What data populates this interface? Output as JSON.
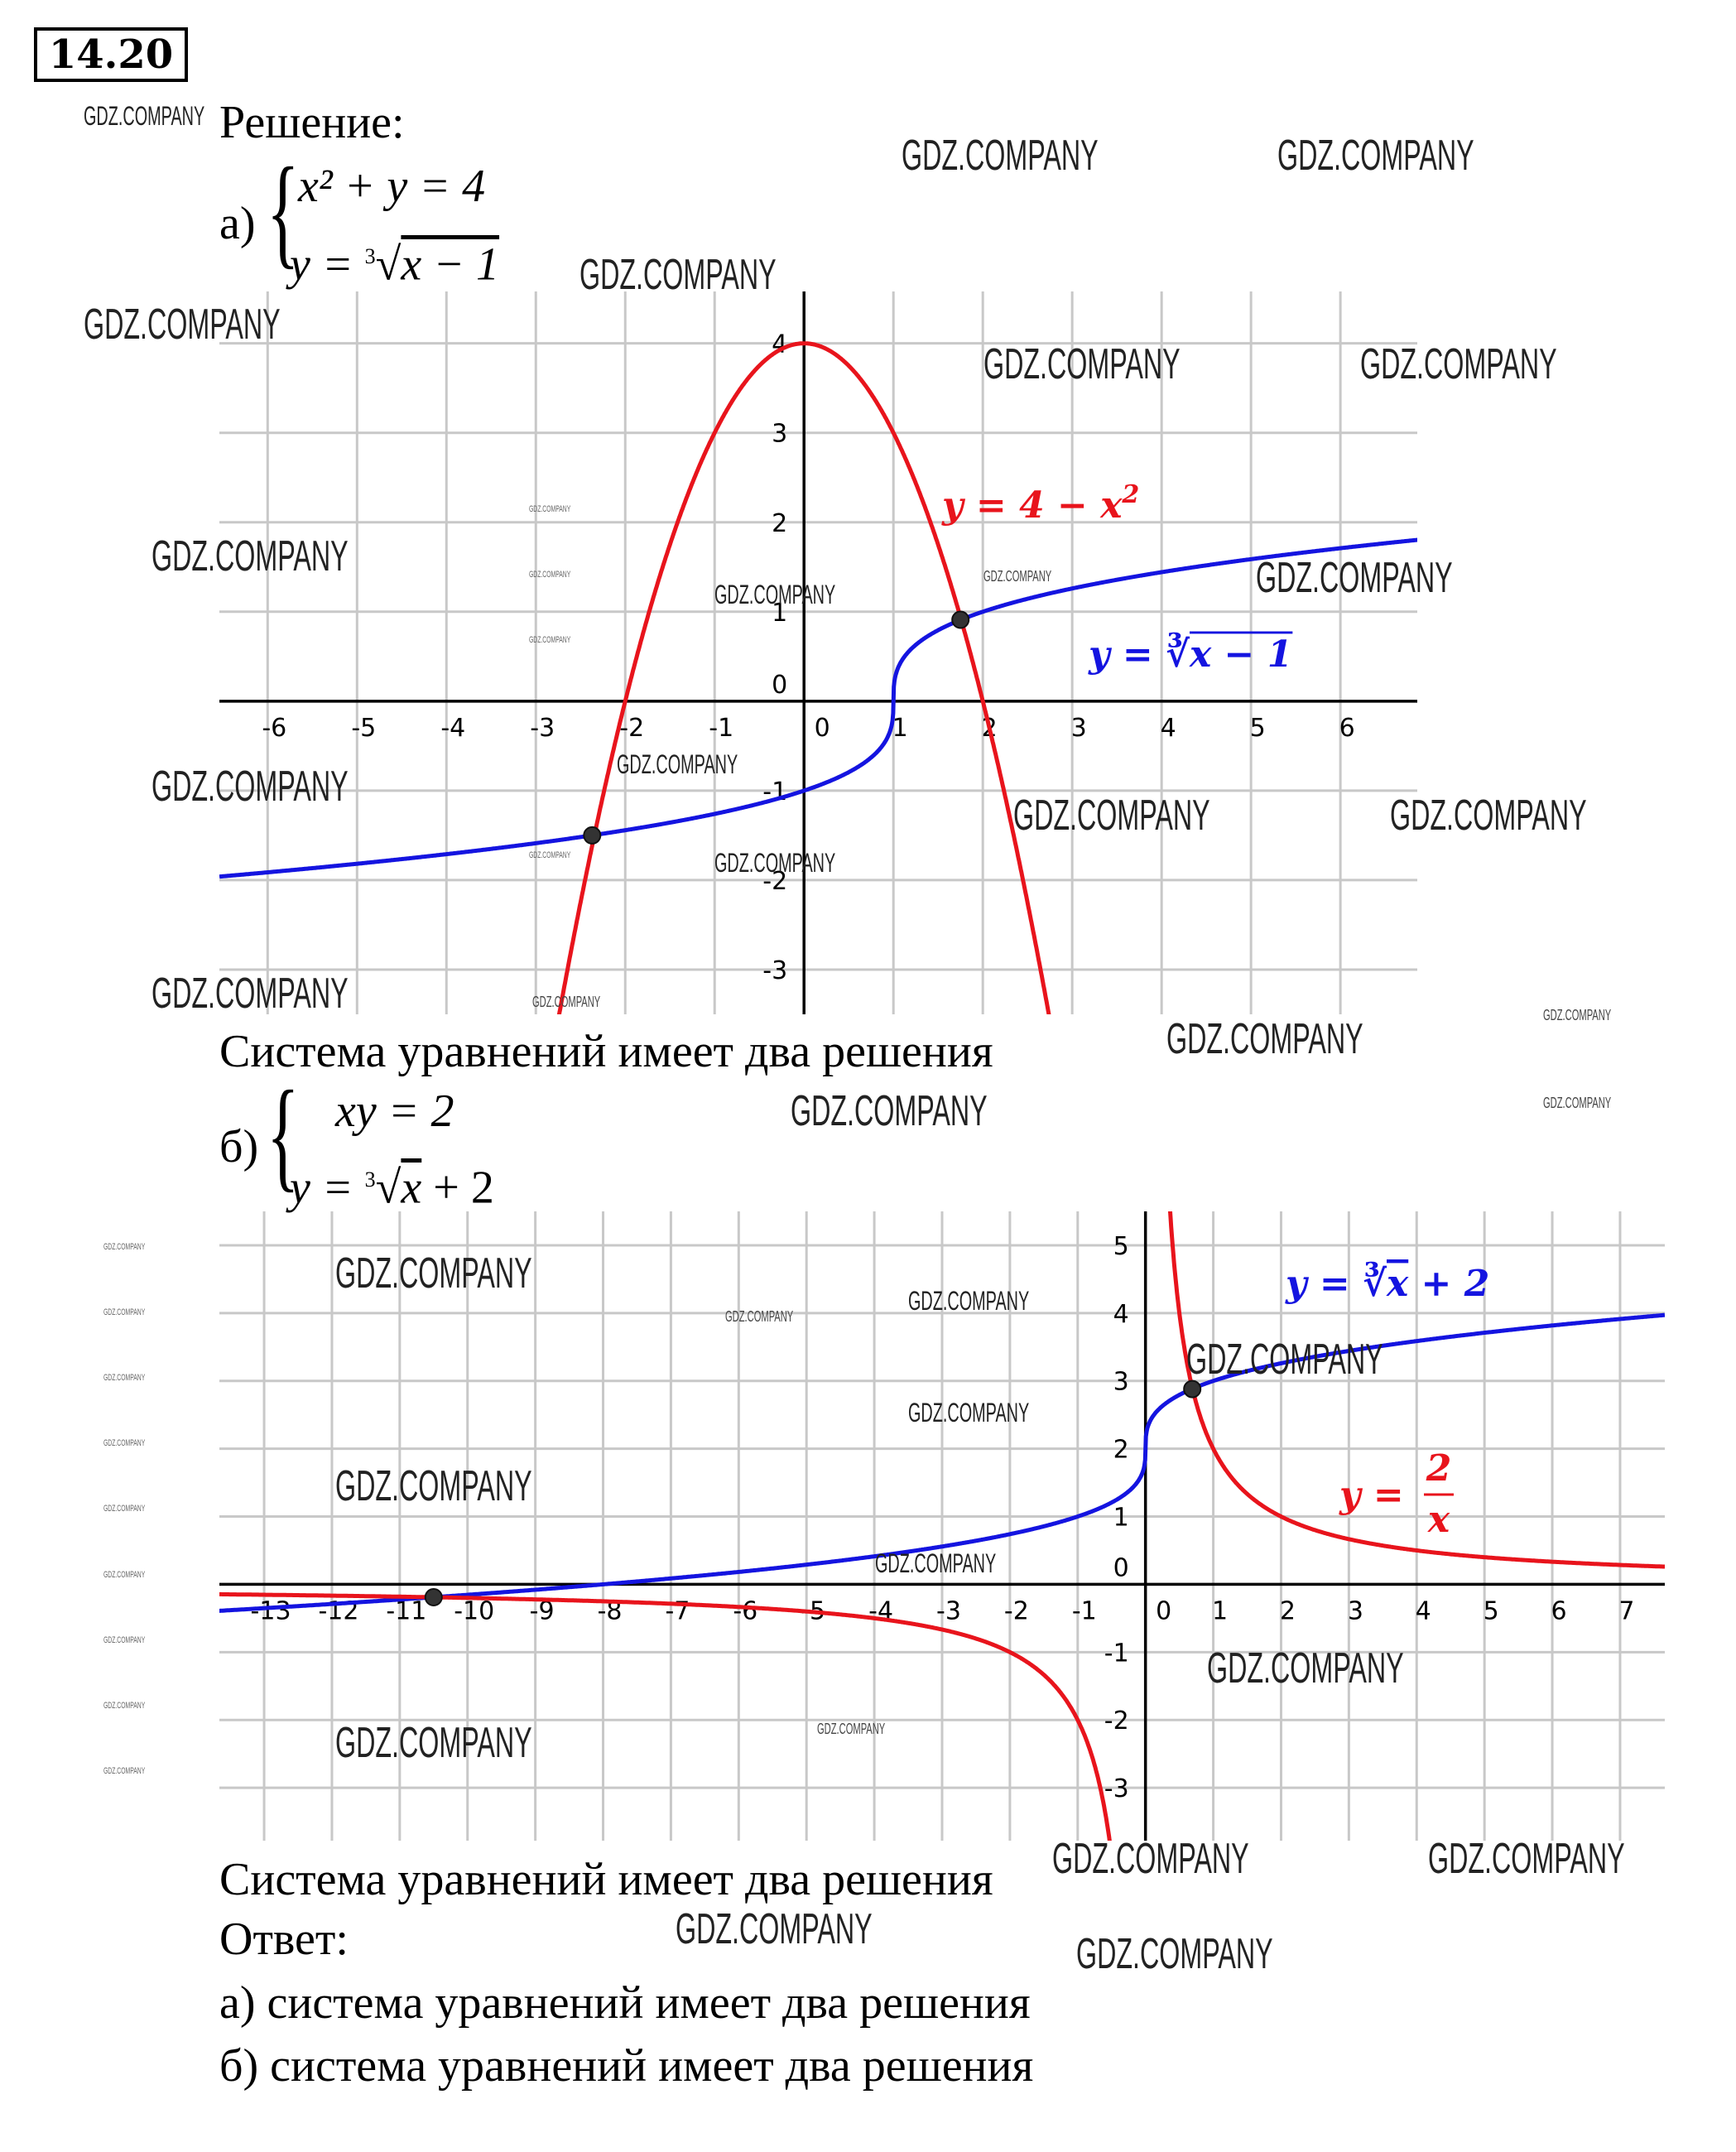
{
  "problem_number": "14.20",
  "solution_label": "Решение:",
  "part_a": {
    "label": "а)",
    "eq1": "x² + y = 4",
    "eq2_prefix": "y = ",
    "eq2_root_index": "3",
    "eq2_radicand": "x − 1",
    "conclusion": "Система уравнений имеет два решения"
  },
  "part_b": {
    "label": "б)",
    "eq1": "xy = 2",
    "eq2_prefix": "y = ",
    "eq2_root_index": "3",
    "eq2_radicand": "x",
    "eq2_suffix": " + 2",
    "conclusion": "Система уравнений имеет два решения"
  },
  "answer": {
    "title": "Ответ:",
    "a": "а) система уравнений имеет два решения",
    "b": "б) система уравнений имеет два решения"
  },
  "watermark": "GDZ.COMPANY",
  "colors": {
    "red": "#e8141c",
    "blue": "#1414e0",
    "grid": "#c8c8c8",
    "axis": "#000000",
    "point": "#333333"
  },
  "chart_data": [
    {
      "type": "line",
      "title": "",
      "xlim": [
        -6.54,
        6.86
      ],
      "ylim": [
        -3.5,
        4.58
      ],
      "grid": true,
      "x_ticks": [
        -6,
        -5,
        -4,
        -3,
        -2,
        -1,
        0,
        1,
        2,
        3,
        4,
        5,
        6
      ],
      "y_ticks": [
        -3,
        -2,
        -1,
        0,
        1,
        2,
        3,
        4
      ],
      "series": [
        {
          "name": "y = 4 − x²",
          "expr": "4-x^2",
          "color": "red",
          "label_parts": [
            "y = 4 − x",
            "2"
          ]
        },
        {
          "name": "y = ∛(x − 1)",
          "expr": "cbrt(x-1)",
          "color": "blue",
          "label_parts": [
            "y = ∛",
            "x − 1"
          ]
        }
      ],
      "points": [
        {
          "x": 1.75,
          "y": 0.91
        },
        {
          "x": -2.37,
          "y": -1.5
        }
      ]
    },
    {
      "type": "line",
      "title": "",
      "xlim": [
        -13.66,
        7.66
      ],
      "ylim": [
        -3.78,
        5.5
      ],
      "grid": true,
      "x_ticks": [
        -13,
        -12,
        -11,
        -10,
        -9,
        -8,
        -7,
        -6,
        -5,
        -4,
        -3,
        -2,
        -1,
        0,
        1,
        2,
        3,
        4,
        5,
        6,
        7
      ],
      "y_ticks": [
        -3,
        -2,
        -1,
        0,
        1,
        2,
        3,
        4,
        5
      ],
      "series": [
        {
          "name": "y = ∛x + 2",
          "expr": "cbrt(x)+2",
          "color": "blue",
          "label_parts": [
            "y = ∛",
            "x",
            " + 2"
          ]
        },
        {
          "name": "y = 2/x",
          "expr": "2/x",
          "color": "red",
          "label_parts": [
            "y = ",
            "2",
            "x"
          ]
        }
      ],
      "points": [
        {
          "x": 0.69,
          "y": 2.88
        },
        {
          "x": -10.5,
          "y": -0.19
        }
      ]
    }
  ]
}
